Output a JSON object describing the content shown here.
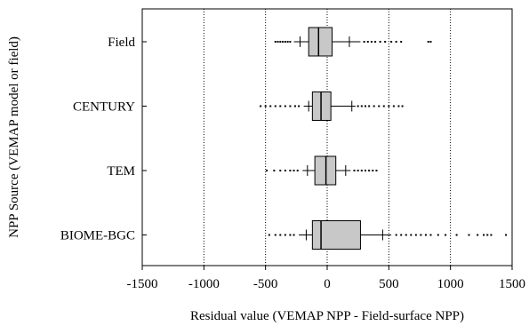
{
  "chart_data": {
    "type": "boxplot",
    "orientation": "horizontal",
    "xlabel": "Residual value (VEMAP NPP - Field-surface NPP)",
    "ylabel": "NPP Source (VEMAP model or field)",
    "xlim": [
      -1500,
      1500
    ],
    "xticks": [
      -1500,
      -1000,
      -500,
      0,
      500,
      1000,
      1500
    ],
    "xtick_labels": [
      "-1500",
      "-1000",
      "-500",
      "0",
      "500",
      "1000",
      "1500"
    ],
    "grid": "vertical dotted lines",
    "box_color": "#c8c8c8",
    "categories": [
      "Field",
      "CENTURY",
      "TEM",
      "BIOME-BGC"
    ],
    "boxes": [
      {
        "name": "Field",
        "p5": -270,
        "p10": -220,
        "q1": -150,
        "median": -70,
        "q3": 40,
        "p90": 180,
        "p95": 270,
        "min": -420,
        "max": 840,
        "low_outliers": [
          -420,
          -400,
          -380,
          -360,
          -340,
          -320,
          -300
        ],
        "high_outliers": [
          300,
          330,
          360,
          390,
          430,
          470,
          520,
          560,
          600,
          820,
          840
        ]
      },
      {
        "name": "CENTURY",
        "p5": -190,
        "p10": -150,
        "q1": -120,
        "median": -50,
        "q3": 30,
        "p90": 200,
        "p95": 230,
        "min": -540,
        "max": 610,
        "low_outliers": [
          -540,
          -500,
          -460,
          -420,
          -380,
          -340,
          -300,
          -260,
          -230
        ],
        "high_outliers": [
          250,
          280,
          310,
          340,
          380,
          420,
          460,
          500,
          540,
          580,
          610
        ]
      },
      {
        "name": "TEM",
        "p5": -200,
        "p10": -160,
        "q1": -100,
        "median": -10,
        "q3": 70,
        "p90": 150,
        "p95": 190,
        "min": -490,
        "max": 400,
        "low_outliers": [
          -490,
          -430,
          -380,
          -340,
          -300,
          -270,
          -240
        ],
        "high_outliers": [
          220,
          250,
          280,
          310,
          340,
          370,
          400
        ]
      },
      {
        "name": "BIOME-BGC",
        "p5": -230,
        "p10": -170,
        "q1": -120,
        "median": -50,
        "q3": 270,
        "p90": 450,
        "p95": 520,
        "min": -470,
        "max": 1450,
        "low_outliers": [
          -470,
          -420,
          -380,
          -340,
          -300,
          -270
        ],
        "high_outliers": [
          560,
          600,
          640,
          680,
          720,
          760,
          800,
          840,
          900,
          960,
          1050,
          1150,
          1220,
          1270,
          1300,
          1330,
          1450
        ]
      }
    ]
  }
}
